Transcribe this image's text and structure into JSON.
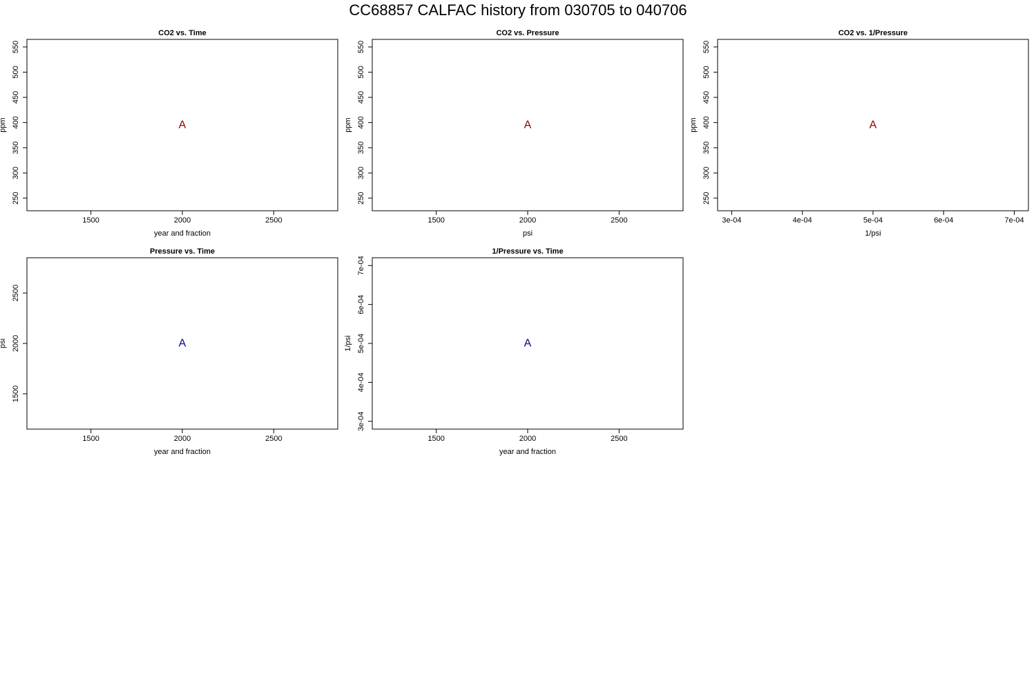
{
  "page": {
    "title": "CC68857   CALFAC history from  030705  to  040706"
  },
  "colors": {
    "co2_marker": "#8b0000",
    "pressure_marker": "#00008b",
    "axis": "#000000"
  },
  "chart_data": [
    {
      "type": "scatter",
      "title": "CO2 vs. Time",
      "xlabel": "year and fraction",
      "ylabel": "ppm",
      "xlim": [
        1150,
        2850
      ],
      "ylim": [
        225,
        565
      ],
      "xticks": [
        1500,
        2000,
        2500
      ],
      "xtick_labels": [
        "1500",
        "2000",
        "2500"
      ],
      "yticks": [
        250,
        300,
        350,
        400,
        450,
        500,
        550
      ],
      "ytick_labels": [
        "250",
        "300",
        "350",
        "400",
        "450",
        "500",
        "550"
      ],
      "points": [
        {
          "x": 2000,
          "y": 395,
          "label": "A"
        }
      ],
      "marker_color": "#8b0000",
      "grid": false,
      "legend": "none"
    },
    {
      "type": "scatter",
      "title": "CO2 vs. Pressure",
      "xlabel": "psi",
      "ylabel": "ppm",
      "xlim": [
        1150,
        2850
      ],
      "ylim": [
        225,
        565
      ],
      "xticks": [
        1500,
        2000,
        2500
      ],
      "xtick_labels": [
        "1500",
        "2000",
        "2500"
      ],
      "yticks": [
        250,
        300,
        350,
        400,
        450,
        500,
        550
      ],
      "ytick_labels": [
        "250",
        "300",
        "350",
        "400",
        "450",
        "500",
        "550"
      ],
      "points": [
        {
          "x": 2000,
          "y": 395,
          "label": "A"
        }
      ],
      "marker_color": "#8b0000",
      "grid": false,
      "legend": "none"
    },
    {
      "type": "scatter",
      "title": "CO2 vs. 1/Pressure",
      "xlabel": "1/psi",
      "ylabel": "ppm",
      "xlim": [
        0.00028,
        0.00072
      ],
      "ylim": [
        225,
        565
      ],
      "xticks": [
        0.0003,
        0.0004,
        0.0005,
        0.0006,
        0.0007
      ],
      "xtick_labels": [
        "3e-04",
        "4e-04",
        "5e-04",
        "6e-04",
        "7e-04"
      ],
      "yticks": [
        250,
        300,
        350,
        400,
        450,
        500,
        550
      ],
      "ytick_labels": [
        "250",
        "300",
        "350",
        "400",
        "450",
        "500",
        "550"
      ],
      "points": [
        {
          "x": 0.0005,
          "y": 395,
          "label": "A"
        }
      ],
      "marker_color": "#8b0000",
      "grid": false,
      "legend": "none"
    },
    {
      "type": "scatter",
      "title": "Pressure vs. Time",
      "xlabel": "year and fraction",
      "ylabel": "psi",
      "xlim": [
        1150,
        2850
      ],
      "ylim": [
        1150,
        2850
      ],
      "xticks": [
        1500,
        2000,
        2500
      ],
      "xtick_labels": [
        "1500",
        "2000",
        "2500"
      ],
      "yticks": [
        1500,
        2000,
        2500
      ],
      "ytick_labels": [
        "1500",
        "2000",
        "2500"
      ],
      "points": [
        {
          "x": 2000,
          "y": 2000,
          "label": "A"
        }
      ],
      "marker_color": "#00008b",
      "grid": false,
      "legend": "none"
    },
    {
      "type": "scatter",
      "title": "1/Pressure vs. Time",
      "xlabel": "year and fraction",
      "ylabel": "1/psi",
      "xlim": [
        1150,
        2850
      ],
      "ylim": [
        0.00028,
        0.00072
      ],
      "xticks": [
        1500,
        2000,
        2500
      ],
      "xtick_labels": [
        "1500",
        "2000",
        "2500"
      ],
      "yticks": [
        0.0003,
        0.0004,
        0.0005,
        0.0006,
        0.0007
      ],
      "ytick_labels": [
        "3e-04",
        "4e-04",
        "5e-04",
        "6e-04",
        "7e-04"
      ],
      "points": [
        {
          "x": 2000,
          "y": 0.0005,
          "label": "A"
        }
      ],
      "marker_color": "#00008b",
      "grid": false,
      "legend": "none"
    }
  ]
}
